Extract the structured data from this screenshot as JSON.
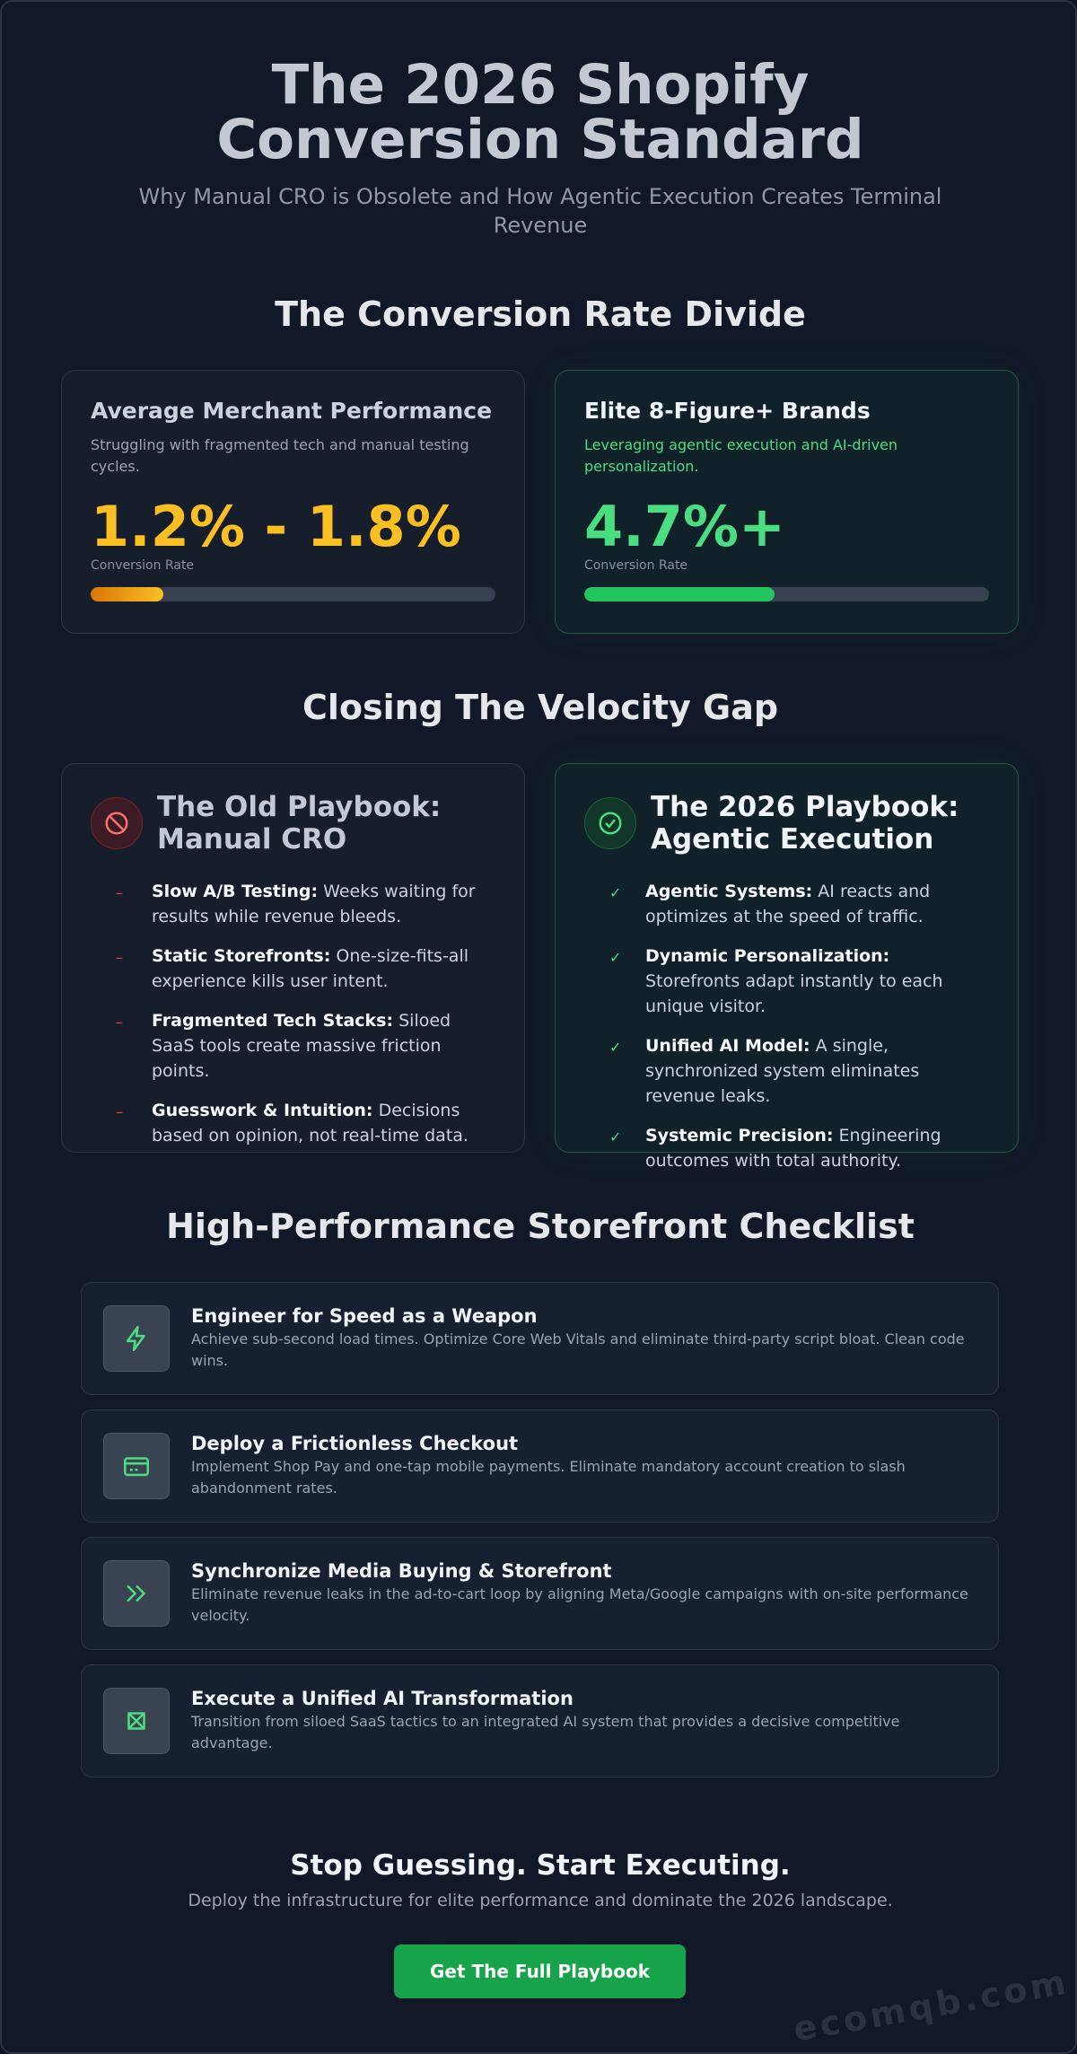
{
  "header": {
    "title": "The 2026 Shopify Conversion Standard",
    "subtitle": "Why Manual CRO is Obsolete and How Agentic Execution Creates Terminal Revenue"
  },
  "divide": {
    "title": "The Conversion Rate Divide",
    "cards": [
      {
        "title": "Average Merchant Performance",
        "description": "Struggling with fragmented tech and manual testing cycles.",
        "stat": "1.2% - 1.8%",
        "stat_label": "Conversion Rate"
      },
      {
        "title": "Elite 8-Figure+ Brands",
        "description": "Leveraging agentic execution and AI-driven personalization.",
        "stat": "4.7%+",
        "stat_label": "Conversion Rate"
      }
    ]
  },
  "velocity": {
    "title": "Closing The Velocity Gap",
    "columns": [
      {
        "title": "The Old Playbook: Manual CRO",
        "items": [
          {
            "lead": "Slow A/B Testing:",
            "text": "Weeks waiting for results while revenue bleeds."
          },
          {
            "lead": "Static Storefronts:",
            "text": "One-size-fits-all experience kills user intent."
          },
          {
            "lead": "Fragmented Tech Stacks:",
            "text": "Siloed SaaS tools create massive friction points."
          },
          {
            "lead": "Guesswork & Intuition:",
            "text": "Decisions based on opinion, not real-time data."
          }
        ]
      },
      {
        "title": "The 2026 Playbook: Agentic Execution",
        "items": [
          {
            "lead": "Agentic Systems:",
            "text": "AI reacts and optimizes at the speed of traffic."
          },
          {
            "lead": "Dynamic Personalization:",
            "text": "Storefronts adapt instantly to each unique visitor."
          },
          {
            "lead": "Unified AI Model:",
            "text": "A single, synchronized system eliminates revenue leaks."
          },
          {
            "lead": "Systemic Precision:",
            "text": "Engineering outcomes with total authority."
          }
        ]
      }
    ]
  },
  "checklist": {
    "title": "High-Performance Storefront Checklist",
    "items": [
      {
        "title": "Engineer for Speed as a Weapon",
        "description": "Achieve sub-second load times. Optimize Core Web Vitals and eliminate third-party script bloat. Clean code wins."
      },
      {
        "title": "Deploy a Frictionless Checkout",
        "description": "Implement Shop Pay and one-tap mobile payments. Eliminate mandatory account creation to slash abandonment rates."
      },
      {
        "title": "Synchronize Media Buying & Storefront",
        "description": "Eliminate revenue leaks in the ad-to-cart loop by aligning Meta/Google campaigns with on-site performance velocity."
      },
      {
        "title": "Execute a Unified AI Transformation",
        "description": "Transition from siloed SaaS tactics to an integrated AI system that provides a decisive competitive advantage."
      }
    ]
  },
  "cta": {
    "title": "Stop Guessing. Start Executing.",
    "text": "Deploy the infrastructure for elite performance and dominate the 2026 landscape.",
    "button": "Get The Full Playbook"
  },
  "watermark": "ecomqb.com"
}
